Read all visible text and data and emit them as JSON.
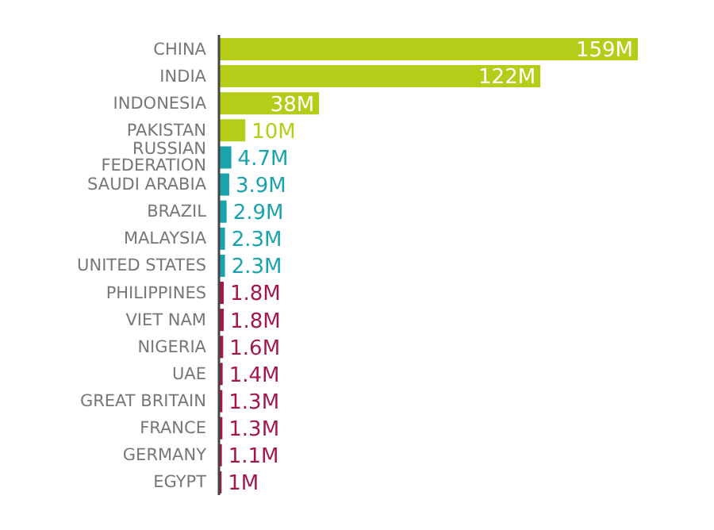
{
  "chart_data": {
    "type": "bar",
    "orientation": "horizontal",
    "categories": [
      "CHINA",
      "INDIA",
      "INDONESIA",
      "PAKISTAN",
      "RUSSIAN FEDERATION",
      "SAUDI ARABIA",
      "BRAZIL",
      "MALAYSIA",
      "UNITED STATES",
      "PHILIPPINES",
      "VIET NAM",
      "NIGERIA",
      "UAE",
      "GREAT BRITAIN",
      "FRANCE",
      "GERMANY",
      "EGYPT"
    ],
    "values": [
      159,
      122,
      38,
      10,
      4.7,
      3.9,
      2.9,
      2.3,
      2.3,
      1.8,
      1.8,
      1.6,
      1.4,
      1.3,
      1.3,
      1.1,
      1
    ],
    "value_labels": [
      "159M",
      "122M",
      "38M",
      "10M",
      "4.7M",
      "3.9M",
      "2.9M",
      "2.3M",
      "2.3M",
      "1.8M",
      "1.8M",
      "1.6M",
      "1.4M",
      "1.3M",
      "1.3M",
      "1.1M",
      "1M"
    ],
    "colors": [
      "#b5cc18",
      "#b5cc18",
      "#b5cc18",
      "#b5cc18",
      "#1ba3ad",
      "#1ba3ad",
      "#1ba3ad",
      "#1ba3ad",
      "#1ba3ad",
      "#a3174f",
      "#a3174f",
      "#a3174f",
      "#a3174f",
      "#a3174f",
      "#a3174f",
      "#a3174f",
      "#a3174f"
    ],
    "grid": false,
    "legend": false
  }
}
